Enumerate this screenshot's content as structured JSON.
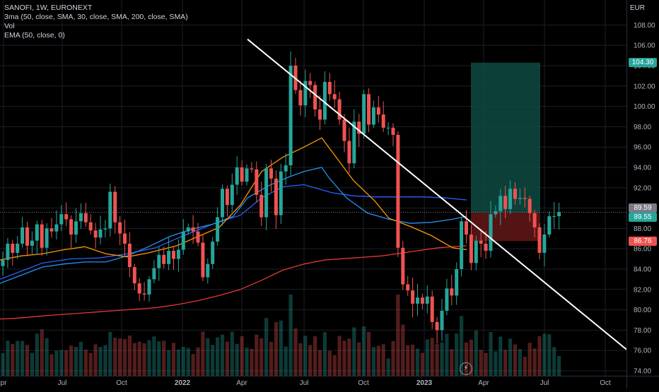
{
  "legend": {
    "title": "SANOFI, 1W, EURONEXT",
    "line2": "3ma (50, close, SMA, 30, close, SMA, 200, close, SMA)",
    "line3": "Vol",
    "line4": "EMA (50, close, 0)"
  },
  "unit": "EUR",
  "colors": {
    "up": "#26a69a",
    "down": "#ef5350",
    "sma50": "#2196f3",
    "sma30": "#ff9800",
    "sma200": "#e53935",
    "ema50": "#2962ff",
    "trendline": "#ffffff",
    "target_zone": "#0f4a43",
    "stop_zone": "#5e1616"
  },
  "icons": {
    "bolt": "lightning-icon"
  },
  "chart_data": {
    "type": "candlestick",
    "x_ticks": [
      "pr",
      "Jul",
      "Oct",
      "2022",
      "Apr",
      "Jul",
      "Oct",
      "2023",
      "Apr",
      "Jul",
      "Oct"
    ],
    "y_ticks": [
      "74.00",
      "76.00",
      "78.00",
      "80.00",
      "82.00",
      "84.00",
      "86.00",
      "88.00",
      "90.00",
      "92.00",
      "94.00",
      "96.00",
      "98.00",
      "100.00",
      "102.00",
      "104.00",
      "106.00",
      "108.00"
    ],
    "ylim": [
      73.5,
      110.0
    ],
    "price_labels": [
      {
        "value": 104.3,
        "text": "104.30",
        "color": "#26a69a"
      },
      {
        "value": 89.59,
        "text": "89.59",
        "color": "#787b86"
      },
      {
        "value": 89.55,
        "text": "89.55",
        "color": "#26a69a"
      },
      {
        "value": 86.76,
        "text": "86.76",
        "color": "#ef5350"
      }
    ],
    "closes": [
      84.9,
      86.5,
      85.6,
      86.5,
      88.1,
      86.3,
      86.8,
      88.4,
      86.1,
      88.0,
      87.7,
      88.4,
      89.4,
      88.9,
      87.4,
      88.7,
      89.5,
      88.6,
      87.8,
      87.1,
      87.9,
      88.0,
      91.6,
      88.6,
      87.5,
      86.5,
      84.2,
      82.6,
      81.6,
      81.5,
      83.0,
      84.1,
      85.4,
      84.5,
      85.8,
      85.0,
      85.9,
      87.7,
      88.1,
      87.7,
      86.6,
      83.2,
      84.5,
      86.7,
      89.1,
      91.9,
      90.3,
      92.3,
      94.0,
      92.6,
      93.9,
      93.8,
      91.3,
      89.1,
      93.9,
      92.9,
      89.3,
      93.6,
      94.2,
      104.0,
      101.6,
      100.1,
      102.5,
      102.1,
      99.7,
      98.7,
      102.4,
      101.2,
      100.7,
      98.7,
      96.6,
      94.4,
      98.5,
      97.3,
      101.2,
      98.2,
      99.9,
      99.2,
      97.9,
      97.9,
      97.2,
      86.1,
      82.5,
      81.9,
      80.6,
      81.2,
      80.6,
      81.3,
      78.8,
      78.0,
      79.9,
      82.1,
      81.4,
      84.0,
      88.7,
      87.4,
      84.6,
      86.8,
      86.5,
      85.8,
      89.4,
      89.7,
      91.2,
      89.9,
      91.9,
      90.9,
      91.0,
      90.9,
      89.5,
      88.1,
      85.6,
      87.4,
      89.2,
      89.2,
      89.6
    ],
    "sma200_path": [
      [
        0,
        79.1
      ],
      [
        20,
        79.15
      ],
      [
        45,
        79.3
      ],
      [
        70,
        79.45
      ],
      [
        100,
        79.6
      ],
      [
        130,
        79.75
      ],
      [
        160,
        79.9
      ],
      [
        190,
        80.05
      ],
      [
        220,
        80.2
      ],
      [
        250,
        80.5
      ],
      [
        280,
        80.9
      ],
      [
        310,
        81.4
      ],
      [
        340,
        82.0
      ],
      [
        370,
        82.9
      ],
      [
        400,
        83.9
      ],
      [
        430,
        84.5
      ],
      [
        460,
        84.9
      ],
      [
        500,
        85.1
      ],
      [
        540,
        85.3
      ],
      [
        580,
        85.7
      ],
      [
        620,
        86.1
      ],
      [
        660,
        86.3
      ]
    ],
    "sma50_path": [
      [
        0,
        82.6
      ],
      [
        30,
        83.4
      ],
      [
        60,
        84.2
      ],
      [
        90,
        84.5
      ],
      [
        120,
        84.7
      ],
      [
        150,
        84.7
      ],
      [
        180,
        85.3
      ],
      [
        210,
        86.2
      ],
      [
        240,
        87.2
      ],
      [
        270,
        87.9
      ],
      [
        300,
        88.4
      ],
      [
        330,
        89.2
      ],
      [
        350,
        91.0
      ],
      [
        380,
        92.2
      ],
      [
        410,
        93.1
      ],
      [
        430,
        93.6
      ],
      [
        455,
        94.0
      ],
      [
        465,
        93.0
      ],
      [
        490,
        91.0
      ],
      [
        520,
        89.5
      ],
      [
        550,
        88.9
      ],
      [
        580,
        88.5
      ],
      [
        610,
        88.6
      ],
      [
        640,
        88.9
      ],
      [
        660,
        89.2
      ]
    ],
    "ema50_path": [
      [
        0,
        83.0
      ],
      [
        30,
        83.8
      ],
      [
        60,
        84.6
      ],
      [
        100,
        85.0
      ],
      [
        140,
        85.1
      ],
      [
        180,
        85.5
      ],
      [
        220,
        86.1
      ],
      [
        260,
        87.3
      ],
      [
        300,
        88.4
      ],
      [
        340,
        89.3
      ],
      [
        370,
        91.0
      ],
      [
        400,
        92.1
      ],
      [
        430,
        92.3
      ],
      [
        470,
        91.5
      ],
      [
        500,
        91.2
      ],
      [
        530,
        91.1
      ],
      [
        560,
        91.1
      ],
      [
        600,
        91.1
      ],
      [
        630,
        91.0
      ],
      [
        660,
        90.8
      ]
    ],
    "sma30_path": [
      [
        0,
        84.9
      ],
      [
        30,
        85.3
      ],
      [
        60,
        85.5
      ],
      [
        90,
        85.9
      ],
      [
        120,
        86.2
      ],
      [
        150,
        85.5
      ],
      [
        180,
        85.2
      ],
      [
        210,
        85.6
      ],
      [
        250,
        86.3
      ],
      [
        280,
        87.2
      ],
      [
        310,
        88.1
      ],
      [
        340,
        90.3
      ],
      [
        370,
        93.6
      ],
      [
        400,
        95.0
      ],
      [
        430,
        96.0
      ],
      [
        455,
        96.9
      ],
      [
        470,
        95.5
      ],
      [
        500,
        92.7
      ],
      [
        530,
        90.7
      ],
      [
        550,
        89.0
      ],
      [
        580,
        88.2
      ],
      [
        610,
        87.3
      ],
      [
        640,
        86.1
      ],
      [
        660,
        85.9
      ]
    ],
    "trendline": [
      [
        350,
        106.6
      ],
      [
        886,
        76.1
      ]
    ],
    "position": {
      "x_start": 666,
      "x_end": 764,
      "entry": 89.55,
      "target": 104.3,
      "stop": 86.76
    }
  }
}
